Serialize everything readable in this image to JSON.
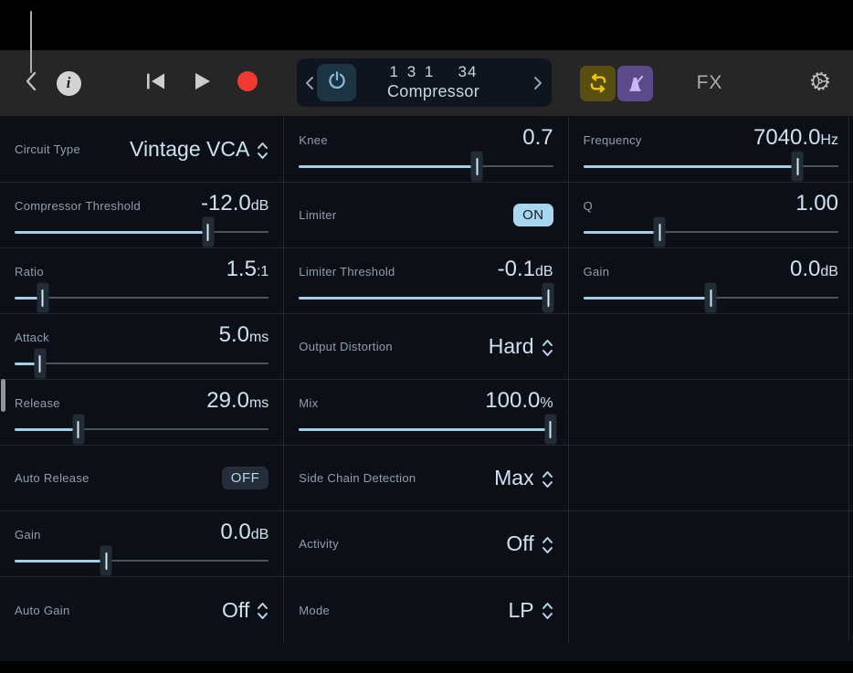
{
  "colors": {
    "accent_blue": "#a9d3ec",
    "record_red": "#f23b30",
    "loop_yellow": "#f1c410",
    "metronome_purple": "#cbb6f2",
    "on_badge_bg": "#a9d6ef",
    "off_badge_bg": "#242e3a",
    "toolbar_bg": "#262627",
    "content_bg": "#0c1016"
  },
  "toolbar": {
    "transport_beats": "1 3 1   34",
    "transport_plugin": "Compressor",
    "fx_label": "FX",
    "icons": [
      "back-chevron",
      "info",
      "skip-to-start",
      "play",
      "record",
      "power",
      "cycle-loop",
      "metronome",
      "settings-gear"
    ]
  },
  "grid": {
    "columns": [
      {
        "cells": [
          {
            "type": "select",
            "label": "Circuit Type",
            "value": "Vintage VCA"
          },
          {
            "type": "slider",
            "label": "Compressor Threshold",
            "value": "-12.0",
            "unit": "dB",
            "percent": 76
          },
          {
            "type": "slider",
            "label": "Ratio",
            "value": "1.5",
            "unit": ":1",
            "percent": 11
          },
          {
            "type": "slider",
            "label": "Attack",
            "value": "5.0",
            "unit": "ms",
            "percent": 10
          },
          {
            "type": "slider",
            "label": "Release",
            "value": "29.0",
            "unit": "ms",
            "percent": 25
          },
          {
            "type": "toggle",
            "label": "Auto Release",
            "value": "OFF",
            "state": "off"
          },
          {
            "type": "slider",
            "label": "Gain",
            "value": "0.0",
            "unit": "dB",
            "percent": 36
          },
          {
            "type": "select",
            "label": "Auto Gain",
            "value": "Off"
          }
        ]
      },
      {
        "cells": [
          {
            "type": "slider",
            "label": "Knee",
            "value": "0.7",
            "unit": "",
            "percent": 70
          },
          {
            "type": "toggle",
            "label": "Limiter",
            "value": "ON",
            "state": "on"
          },
          {
            "type": "slider",
            "label": "Limiter Threshold",
            "value": "-0.1",
            "unit": "dB",
            "percent": 98
          },
          {
            "type": "select",
            "label": "Output Distortion",
            "value": "Hard"
          },
          {
            "type": "slider",
            "label": "Mix",
            "value": "100.0",
            "unit": "%",
            "percent": 99
          },
          {
            "type": "select",
            "label": "Side Chain Detection",
            "value": "Max"
          },
          {
            "type": "select",
            "label": "Activity",
            "value": "Off"
          },
          {
            "type": "select",
            "label": "Mode",
            "value": "LP"
          }
        ]
      },
      {
        "cells": [
          {
            "type": "slider",
            "label": "Frequency",
            "value": "7040.0",
            "unit": "Hz",
            "percent": 84
          },
          {
            "type": "slider",
            "label": "Q",
            "value": "1.00",
            "unit": "",
            "percent": 30
          },
          {
            "type": "slider",
            "label": "Gain",
            "value": "0.0",
            "unit": "dB",
            "percent": 50
          },
          {
            "type": "empty"
          },
          {
            "type": "empty"
          },
          {
            "type": "empty"
          },
          {
            "type": "empty"
          },
          {
            "type": "empty"
          }
        ]
      }
    ]
  }
}
